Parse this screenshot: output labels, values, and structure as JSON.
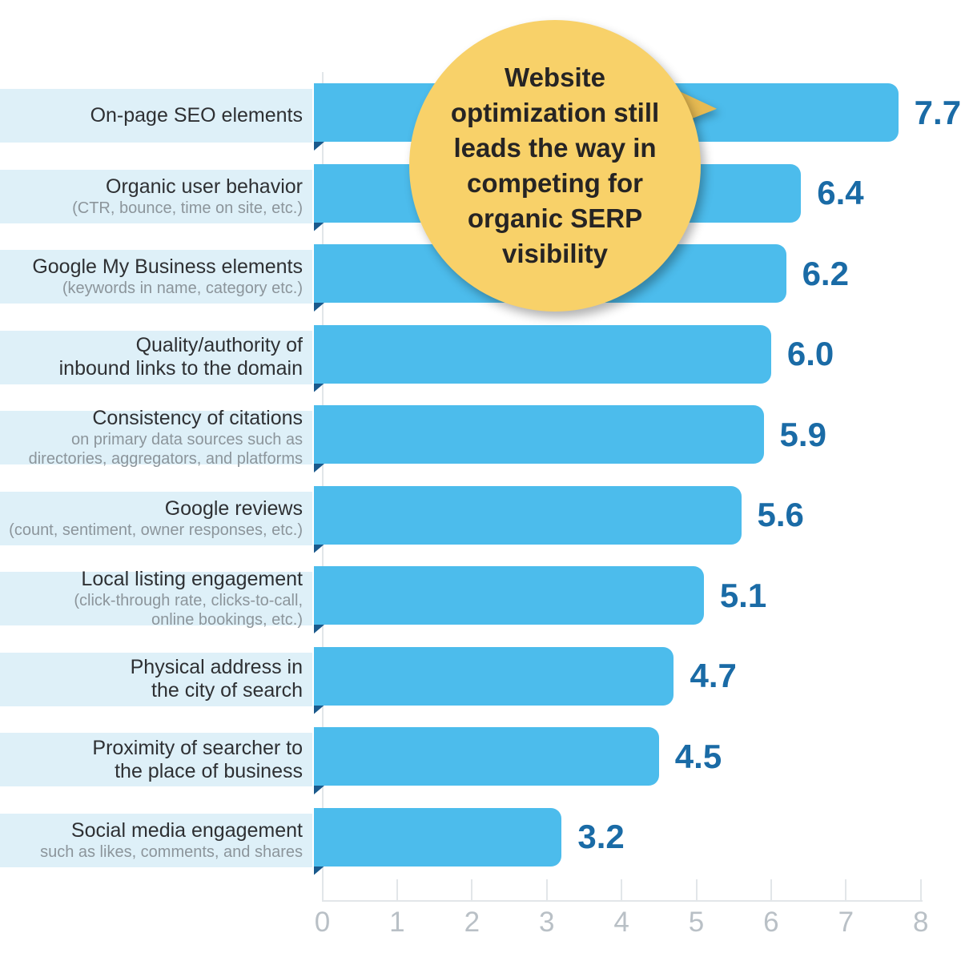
{
  "chart_data": {
    "type": "bar",
    "orientation": "horizontal",
    "grid": false,
    "xlim": [
      0,
      8
    ],
    "x_ticks": [
      "0",
      "1",
      "2",
      "3",
      "4",
      "5",
      "6",
      "7",
      "8"
    ],
    "annotation": "Website optimization still leads the way in competing for organic SERP visibility",
    "rows": [
      {
        "label": "On-page SEO elements",
        "sublabel": "",
        "value": 7.7,
        "value_label": "7.7"
      },
      {
        "label": "Organic user behavior",
        "sublabel": "(CTR, bounce, time on site, etc.)",
        "value": 6.4,
        "value_label": "6.4"
      },
      {
        "label": "Google My Business elements",
        "sublabel": "(keywords in name, category etc.)",
        "value": 6.2,
        "value_label": "6.2"
      },
      {
        "label": "Quality/authority of\ninbound links to the domain",
        "sublabel": "",
        "value": 6.0,
        "value_label": "6.0"
      },
      {
        "label": "Consistency of citations",
        "sublabel": "on primary data sources such as\ndirectories, aggregators, and platforms",
        "value": 5.9,
        "value_label": "5.9"
      },
      {
        "label": "Google reviews",
        "sublabel": "(count, sentiment, owner responses, etc.)",
        "value": 5.6,
        "value_label": "5.6"
      },
      {
        "label": "Local listing engagement",
        "sublabel": "(click-through rate, clicks-to-call,\nonline bookings, etc.)",
        "value": 5.1,
        "value_label": "5.1"
      },
      {
        "label": "Physical address in\nthe city of search",
        "sublabel": "",
        "value": 4.7,
        "value_label": "4.7"
      },
      {
        "label": "Proximity of searcher to\nthe place of business",
        "sublabel": "",
        "value": 4.5,
        "value_label": "4.5"
      },
      {
        "label": "Social media engagement",
        "sublabel": "such as likes, comments, and shares",
        "value": 3.2,
        "value_label": "3.2"
      }
    ]
  },
  "callout": {
    "text": "Website optimization still leads the way in competing for organic SERP visibility"
  },
  "colors": {
    "bar": "#4cbcec",
    "label_strip": "#def0f8",
    "ribbon_fold": "#19598c",
    "value_text": "#1a6ba6",
    "label_text": "#2e3033",
    "sublabel_text": "#8c959b",
    "axis_line": "#e2e6e9",
    "tick_text": "#b9c0c6",
    "bubble_fill": "#f8d169",
    "bubble_pointer": "#e6ba52",
    "bubble_text": "#262424",
    "background": "#ffffff"
  }
}
